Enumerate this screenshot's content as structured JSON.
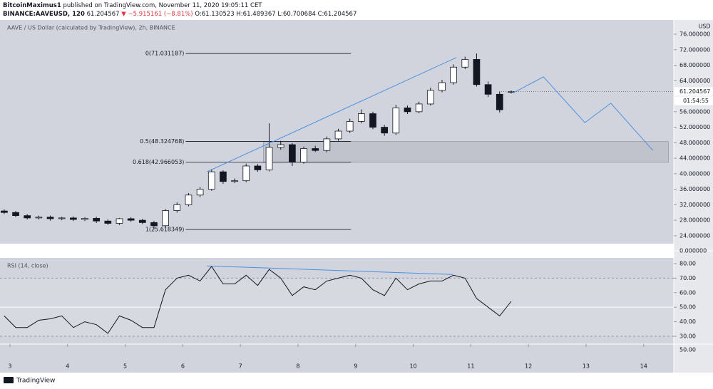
{
  "header": {
    "publisher": "BitcoinMaximus1",
    "note": "published on TradingView.com, November 11, 2020 19:05:11 CET",
    "symbol": "BINANCE:AAVEUSD, 120",
    "price": "61.204567",
    "change": "▼ −5.915161 (−8.81%)",
    "ohlc": "O:61.130523 H:61.489367 L:60.700684 C:61.204567"
  },
  "chart_data": [
    {
      "type": "candlestick",
      "title": "AAVE / US Dollar (calculated by TradingView), 2h, BINANCE",
      "y_axis_label": "USD",
      "xlim": [
        2.827,
        14.523
      ],
      "ylim": [
        21.96,
        79.68
      ],
      "yticks": [
        {
          "value": 24,
          "label": "24.000000"
        },
        {
          "value": 28,
          "label": "28.000000"
        },
        {
          "value": 32,
          "label": "32.000000"
        },
        {
          "value": 36,
          "label": "36.000000"
        },
        {
          "value": 40,
          "label": "40.000000"
        },
        {
          "value": 44,
          "label": "44.000000"
        },
        {
          "value": 48,
          "label": "48.000000"
        },
        {
          "value": 52,
          "label": "52.000000"
        },
        {
          "value": 56,
          "label": "56.000000"
        },
        {
          "value": 64,
          "label": "64.000000"
        },
        {
          "value": 68,
          "label": "68.000000"
        },
        {
          "value": 72,
          "label": "72.000000"
        },
        {
          "value": 76,
          "label": "76.000000"
        }
      ],
      "x": [
        2.9,
        3.1,
        3.3,
        3.5,
        3.7,
        3.9,
        4.1,
        4.3,
        4.5,
        4.7,
        4.9,
        5.1,
        5.3,
        5.5,
        5.7,
        5.9,
        6.1,
        6.3,
        6.5,
        6.7,
        6.9,
        7.1,
        7.3,
        7.5,
        7.7,
        7.9,
        8.1,
        8.3,
        8.5,
        8.7,
        8.9,
        9.1,
        9.3,
        9.5,
        9.7,
        9.9,
        10.1,
        10.3,
        10.5,
        10.7,
        10.9,
        11.1,
        11.3,
        11.5,
        11.7
      ],
      "open": [
        30.4,
        30.0,
        29.2,
        28.6,
        28.8,
        28.4,
        28.6,
        28.2,
        28.5,
        27.8,
        27.2,
        28.4,
        28.0,
        27.4,
        26.6,
        30.5,
        32.0,
        34.5,
        36.0,
        40.5,
        38.0,
        38.2,
        42.0,
        41.0,
        46.8,
        47.5,
        43.0,
        46.5,
        46.0,
        49.0,
        51.0,
        53.5,
        55.5,
        52.0,
        50.5,
        57.0,
        56.0,
        58.0,
        61.5,
        63.5,
        67.5,
        69.5,
        63.0,
        60.5,
        61.130523
      ],
      "high": [
        30.8,
        30.4,
        29.6,
        29.2,
        29.2,
        28.9,
        29.0,
        28.8,
        28.9,
        28.2,
        28.6,
        28.8,
        28.4,
        27.8,
        30.9,
        32.6,
        35.0,
        36.6,
        41.2,
        40.9,
        38.8,
        42.6,
        42.5,
        53.0,
        48.5,
        47.9,
        47.0,
        47.2,
        49.6,
        51.6,
        54.2,
        56.6,
        56.0,
        52.6,
        57.8,
        57.6,
        58.6,
        62.2,
        64.2,
        68.2,
        70.2,
        71.03,
        63.8,
        61.2,
        61.489367
      ],
      "low": [
        29.6,
        28.8,
        28.2,
        28.2,
        27.9,
        28.0,
        27.8,
        27.8,
        27.3,
        26.8,
        26.8,
        27.6,
        27.0,
        25.62,
        26.2,
        30.0,
        31.6,
        34.0,
        35.6,
        37.4,
        37.6,
        37.8,
        40.5,
        40.6,
        46.2,
        42.0,
        42.6,
        45.6,
        45.5,
        48.5,
        50.5,
        53.0,
        51.5,
        49.8,
        50.0,
        55.4,
        55.6,
        57.6,
        61.0,
        63.0,
        67.0,
        62.5,
        59.8,
        55.8,
        60.700684
      ],
      "close": [
        30.0,
        29.2,
        28.6,
        28.8,
        28.4,
        28.6,
        28.2,
        28.5,
        27.8,
        27.2,
        28.4,
        28.0,
        27.4,
        26.6,
        30.5,
        32.0,
        34.5,
        36.0,
        40.5,
        38.0,
        38.2,
        42.0,
        41.0,
        46.8,
        47.5,
        43.0,
        46.5,
        46.0,
        49.0,
        51.0,
        53.5,
        55.5,
        52.0,
        50.5,
        57.0,
        56.0,
        58.0,
        61.5,
        63.5,
        67.5,
        69.5,
        63.0,
        60.5,
        56.5,
        61.204567
      ],
      "up_color": "#ffffff",
      "down_color": "#131722",
      "fib_levels": [
        {
          "value": 71.031187,
          "label": "0(71.031187)"
        },
        {
          "value": 48.324768,
          "label": "0.5(48.324768)"
        },
        {
          "value": 42.966053,
          "label": "0.618(42.966053)"
        },
        {
          "value": 25.618349,
          "label": "1(25.618349)"
        }
      ],
      "fib_x": [
        6.05,
        8.92
      ],
      "zone_x": [
        7.4,
        14.43
      ],
      "trendline": {
        "color": "#4a90e2",
        "x": [
          6.42,
          10.75
        ],
        "y": [
          40.5,
          70.0
        ]
      },
      "projection": {
        "color": "#4a90e2",
        "x": [
          11.74,
          12.26,
          12.98,
          13.43,
          14.16
        ],
        "y": [
          60.9,
          65.0,
          53.2,
          58.2,
          46.0
        ]
      },
      "last_price": {
        "value": 61.204567,
        "label": "61.204567"
      },
      "countdown": "01:54:55",
      "pane_label": "0.000000"
    },
    {
      "type": "line",
      "title": "RSI (14, close)",
      "xlim": [
        2.827,
        14.523
      ],
      "xticks": [
        3,
        4,
        5,
        6,
        7,
        8,
        9,
        10,
        11,
        12,
        13,
        14
      ],
      "ylim": [
        24.6,
        83.9
      ],
      "yticks": [
        {
          "value": 30,
          "label": "30.00"
        },
        {
          "value": 40,
          "label": "40.00"
        },
        {
          "value": 50,
          "label": "50.00"
        },
        {
          "value": 60,
          "label": "60.00"
        },
        {
          "value": 70,
          "label": "70.00"
        },
        {
          "value": 80,
          "label": "80.00"
        }
      ],
      "bands": [
        30,
        70
      ],
      "mid_line": 50,
      "series": [
        {
          "color": "#131722",
          "x": [
            2.9,
            3.1,
            3.3,
            3.5,
            3.7,
            3.9,
            4.1,
            4.3,
            4.5,
            4.7,
            4.9,
            5.1,
            5.3,
            5.5,
            5.7,
            5.9,
            6.1,
            6.3,
            6.5,
            6.7,
            6.9,
            7.1,
            7.3,
            7.5,
            7.7,
            7.9,
            8.1,
            8.3,
            8.5,
            8.7,
            8.9,
            9.1,
            9.3,
            9.5,
            9.7,
            9.9,
            10.1,
            10.3,
            10.5,
            10.7,
            10.9,
            11.1,
            11.3,
            11.5,
            11.7
          ],
          "values": [
            44,
            36,
            36,
            41,
            42,
            44,
            36,
            40,
            38,
            32,
            44,
            41,
            36,
            36,
            62,
            70,
            72,
            68,
            78,
            66,
            66,
            72,
            65,
            76,
            70,
            58,
            64,
            62,
            68,
            70,
            72,
            70,
            62,
            58,
            70,
            62,
            66,
            68,
            68,
            72,
            70,
            56,
            50,
            44,
            54
          ]
        }
      ],
      "trendline": {
        "color": "#4a90e2",
        "x": [
          6.42,
          10.69
        ],
        "y": [
          78.4,
          72.5
        ]
      },
      "scale_label": "50.00"
    }
  ],
  "footer": {
    "brand": "TradingView"
  }
}
